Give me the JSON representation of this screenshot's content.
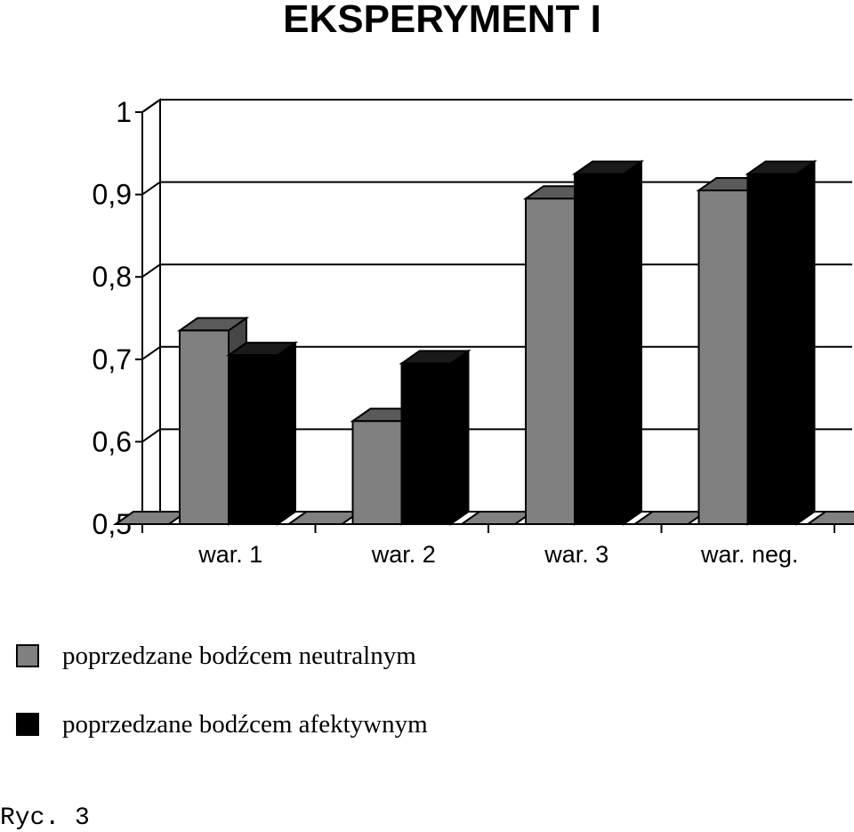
{
  "chart_data": {
    "type": "bar",
    "title": "EKSPERYMENT I",
    "xlabel": "",
    "ylabel": "",
    "ylim": [
      0.5,
      1
    ],
    "yticks": [
      "0,5",
      "0,6",
      "0,7",
      "0,8",
      "0,9",
      "1"
    ],
    "categories": [
      "war. 1",
      "war. 2",
      "war. 3",
      "war. neg."
    ],
    "series": [
      {
        "name": "poprzedzane bodźcem neutralnym",
        "color": "#808080",
        "values": [
          0.735,
          0.625,
          0.895,
          0.905
        ]
      },
      {
        "name": "poprzedzane bodźcem afektywnym",
        "color": "#000000",
        "values": [
          0.705,
          0.695,
          0.925,
          0.925
        ]
      }
    ],
    "grid": true,
    "legend_position": "bottom-left",
    "style": "3d"
  },
  "caption": "Ryc. 3"
}
